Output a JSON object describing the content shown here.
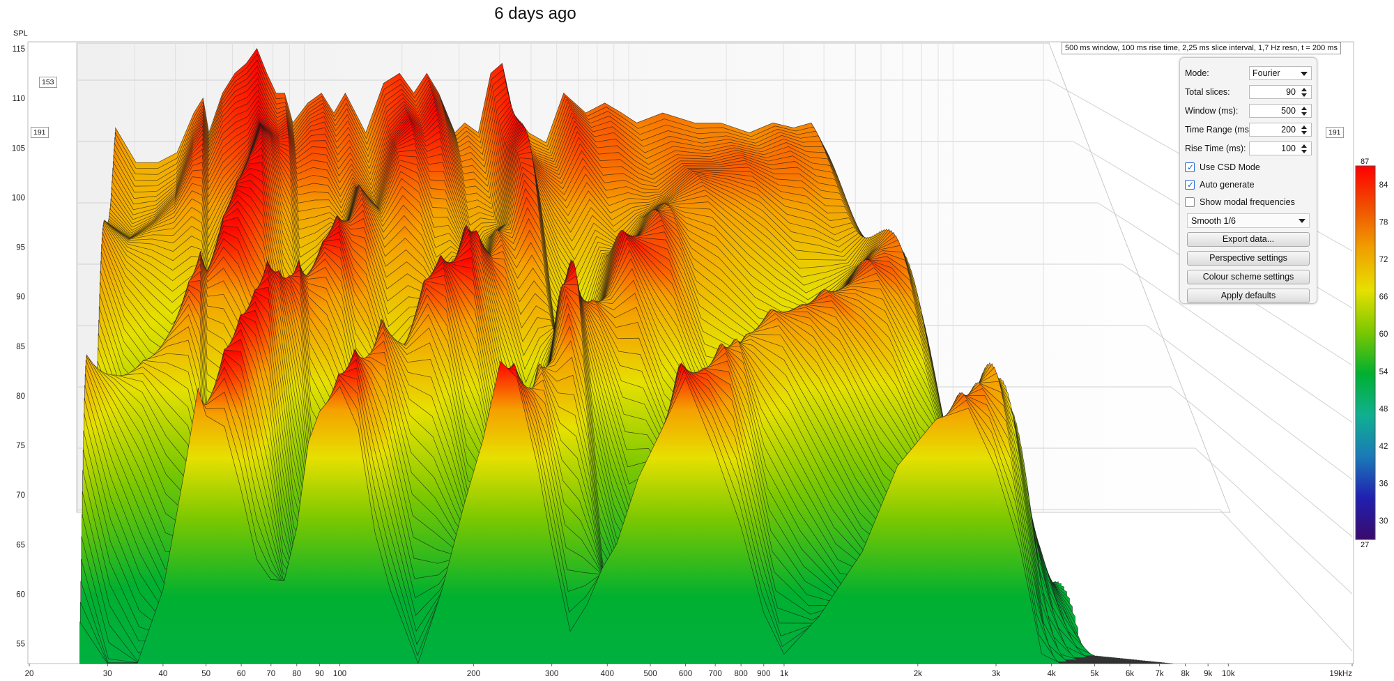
{
  "title": "6 days ago",
  "info_text": "500 ms window, 100 ms rise time, 2,25 ms slice interval, 1,7 Hz resn, t = 200 ms",
  "slice_markers": [
    "153",
    "191",
    "191"
  ],
  "panel": {
    "mode_label": "Mode:",
    "mode_value": "Fourier",
    "total_slices_label": "Total slices:",
    "total_slices_value": "90",
    "window_label": "Window (ms):",
    "window_value": "500",
    "time_range_label": "Time Range (ms):",
    "time_range_value": "200",
    "rise_time_label": "Rise Time (ms):",
    "rise_time_value": "100",
    "use_csd_label": "Use CSD Mode",
    "use_csd_checked": true,
    "auto_generate_label": "Auto generate",
    "auto_generate_checked": true,
    "show_modal_label": "Show modal frequencies",
    "show_modal_checked": false,
    "smoothing_value": "Smooth 1/6",
    "export_label": "Export data...",
    "perspective_label": "Perspective settings",
    "colour_label": "Colour scheme settings",
    "defaults_label": "Apply defaults"
  },
  "colour_scale": {
    "top_label": "87",
    "bottom_label": "27",
    "ticks": [
      "84",
      "78",
      "72",
      "66",
      "60",
      "54",
      "48",
      "42",
      "36",
      "30"
    ],
    "tick_values": [
      84,
      78,
      72,
      66,
      60,
      54,
      48,
      42,
      36,
      30
    ],
    "min": 27,
    "max": 87,
    "stops": [
      "#3a0a6b",
      "#2020b0",
      "#1a7ab8",
      "#10b090",
      "#00b030",
      "#7cc800",
      "#e6e000",
      "#f0a000",
      "#f05000",
      "#ff0000"
    ]
  },
  "chart_data": {
    "type": "area",
    "subtype": "cumulative spectral decay (waterfall)",
    "ylabel": "SPL",
    "xunit": "Hz",
    "xscale": "log",
    "xlim": [
      20,
      19000
    ],
    "ylim": [
      53,
      115
    ],
    "y_ticks": [
      115,
      110,
      105,
      100,
      95,
      90,
      85,
      80,
      75,
      70,
      65,
      60,
      55
    ],
    "x_ticks": [
      20,
      30,
      40,
      50,
      60,
      70,
      80,
      90,
      100,
      200,
      300,
      400,
      500,
      600,
      700,
      800,
      900,
      1000,
      2000,
      3000,
      4000,
      5000,
      6000,
      7000,
      8000,
      9000,
      10000,
      19000
    ],
    "x_tick_labels": [
      "20",
      "30",
      "40",
      "50",
      "60",
      "70",
      "80",
      "90",
      "100",
      "200",
      "300",
      "400",
      "500",
      "600",
      "700",
      "800",
      "900",
      "1k",
      "2k",
      "3k",
      "4k",
      "5k",
      "6k",
      "7k",
      "8k",
      "9k",
      "10k",
      "19kHz"
    ],
    "slices_drawn": 90,
    "first_slice": {
      "x": [
        26,
        30,
        35,
        40,
        45,
        48,
        50,
        55,
        60,
        65,
        70,
        75,
        80,
        85,
        90,
        100,
        110,
        120,
        130,
        150,
        170,
        190,
        210,
        230,
        250,
        280,
        300,
        330,
        360,
        390,
        420,
        470,
        530,
        600,
        700,
        800,
        900,
        1000,
        1200,
        1500,
        1800,
        2200,
        2600,
        3000,
        3400,
        3800,
        4200,
        4700,
        5500,
        6500,
        7500
      ],
      "y": [
        104.5,
        101,
        101,
        102,
        106,
        107.5,
        104,
        108,
        110,
        111,
        112.5,
        110,
        108,
        108,
        105,
        107,
        108,
        106,
        108,
        104,
        109,
        110,
        108,
        110,
        108,
        104,
        105,
        104,
        110,
        111,
        106,
        104,
        103,
        108,
        106,
        107,
        106,
        105,
        106,
        105,
        105,
        104,
        105,
        104.5,
        105,
        102,
        98,
        90,
        82,
        76,
        74
      ]
    },
    "last_slice_floor": 57
  }
}
